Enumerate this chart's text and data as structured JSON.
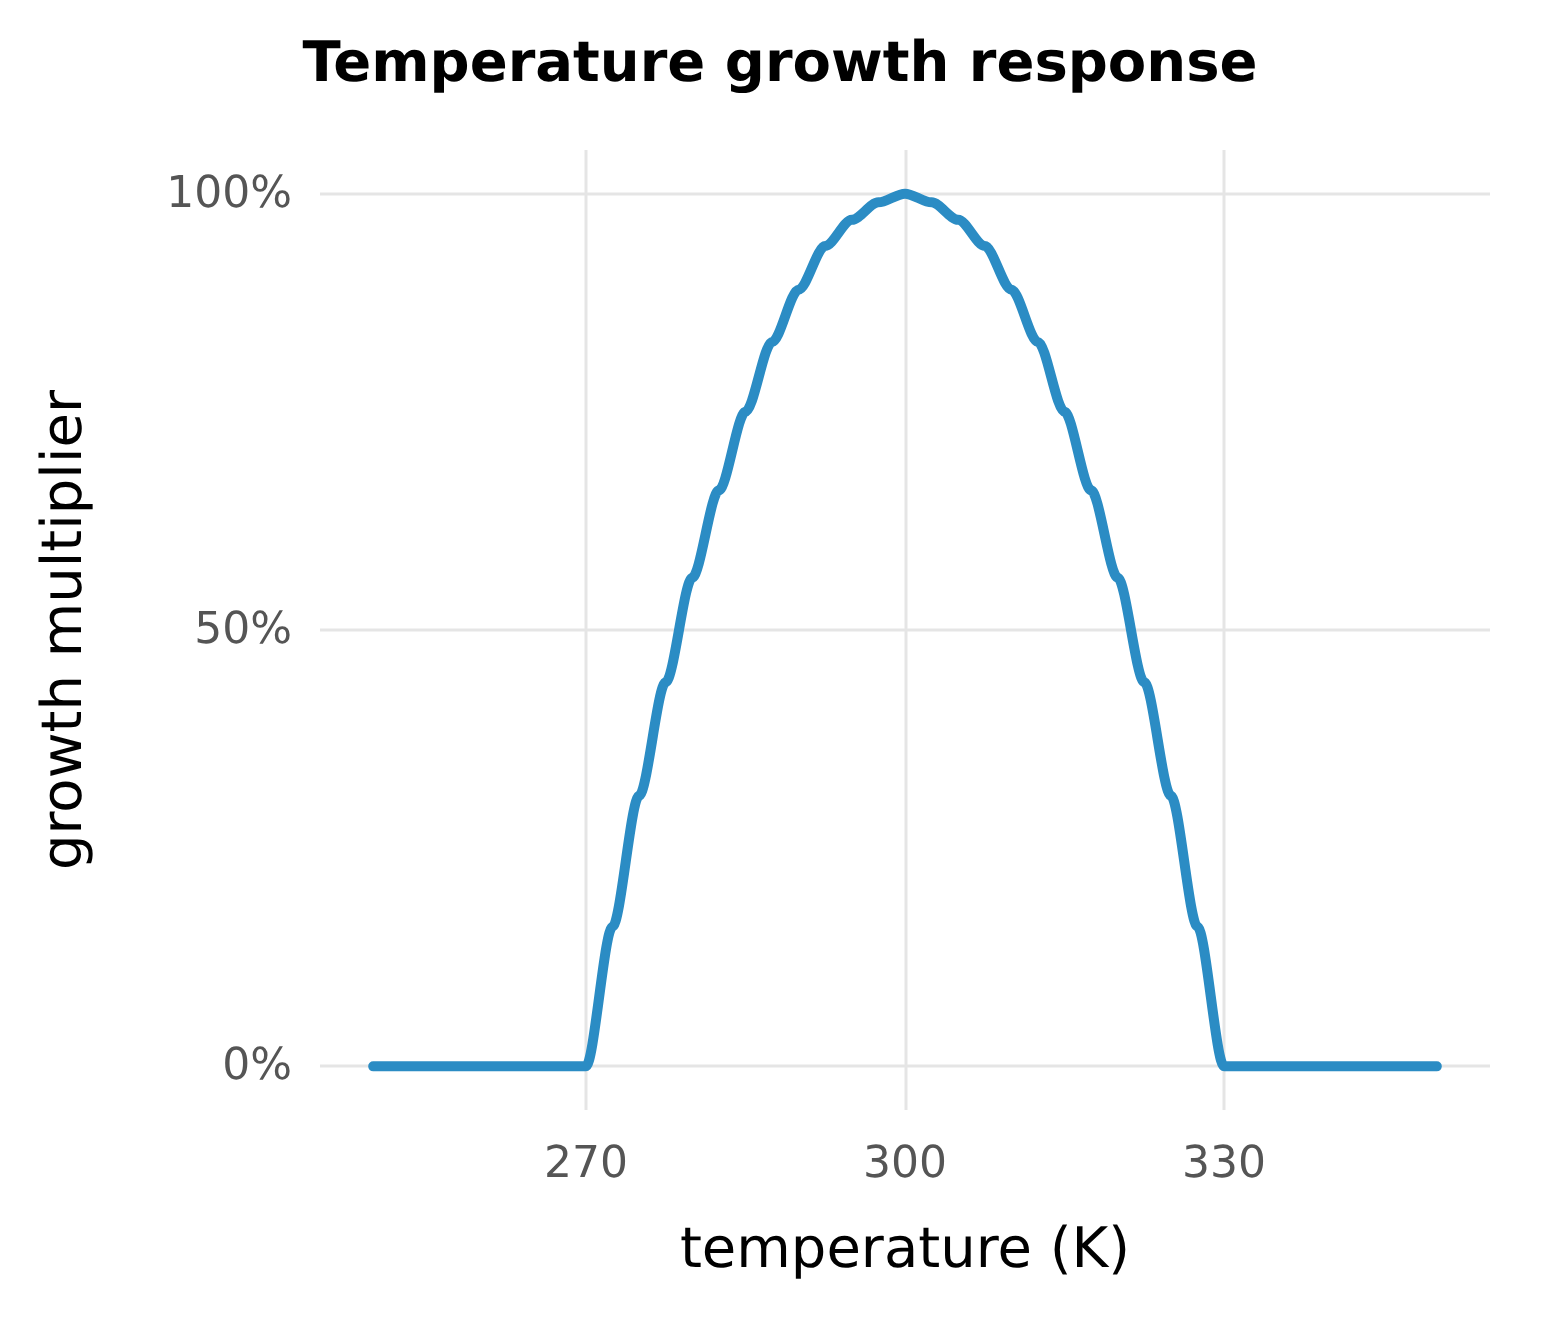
{
  "chart_data": {
    "type": "line",
    "title": "Temperature growth response",
    "xlabel": "temperature (K)",
    "ylabel": "growth multiplier",
    "x": [
      250,
      270,
      272.5,
      275,
      277.5,
      280,
      282.5,
      285,
      287.5,
      290,
      292.5,
      295,
      297.5,
      300,
      302.5,
      305,
      307.5,
      310,
      312.5,
      315,
      317.5,
      320,
      322.5,
      325,
      327.5,
      330,
      350
    ],
    "series": [
      {
        "color": "#2b8cc4",
        "values": [
          0,
          0,
          16,
          31,
          44,
          56,
          66,
          75,
          83,
          89,
          94,
          97,
          99,
          100,
          99,
          97,
          94,
          89,
          83,
          75,
          66,
          56,
          44,
          31,
          16,
          0,
          0
        ]
      }
    ],
    "xlim": [
      245,
      355
    ],
    "xticks": [
      270,
      300,
      330
    ],
    "ylim": [
      -5,
      105
    ],
    "yticks": [
      {
        "value": 0,
        "label": "0%"
      },
      {
        "value": 50,
        "label": "50%"
      },
      {
        "value": 100,
        "label": "100%"
      }
    ],
    "grid": true,
    "marker": "none",
    "line_style": "solid"
  }
}
